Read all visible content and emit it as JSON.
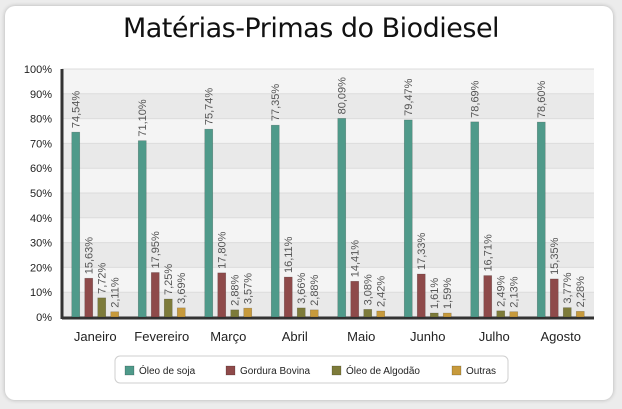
{
  "chart_data": {
    "type": "bar",
    "title": "Matérias-Primas do Biodiesel",
    "categories": [
      "Janeiro",
      "Fevereiro",
      "Março",
      "Abril",
      "Maio",
      "Junho",
      "Julho",
      "Agosto"
    ],
    "series": [
      {
        "name": "Óleo de soja",
        "color": "#4f9a8a",
        "values": [
          74.54,
          71.1,
          75.74,
          77.35,
          80.09,
          79.47,
          78.69,
          78.6
        ],
        "labels": [
          "74,54%",
          "71,10%",
          "75,74%",
          "77,35%",
          "80,09%",
          "79,47%",
          "78,69%",
          "78,60%"
        ]
      },
      {
        "name": "Gordura Bovina",
        "color": "#8e4a4a",
        "values": [
          15.63,
          17.95,
          17.8,
          16.11,
          14.41,
          17.33,
          16.71,
          15.35
        ],
        "labels": [
          "15,63%",
          "17,95%",
          "17,80%",
          "16,11%",
          "14,41%",
          "17,33%",
          "16,71%",
          "15,35%"
        ]
      },
      {
        "name": "Óleo de Algodão",
        "color": "#7d7b3a",
        "values": [
          7.72,
          7.25,
          2.88,
          3.66,
          3.08,
          1.61,
          2.49,
          3.77
        ],
        "labels": [
          "7,72%",
          "7,25%",
          "2,88%",
          "3,66%",
          "3,08%",
          "1,61%",
          "2,49%",
          "3,77%"
        ]
      },
      {
        "name": "Outras",
        "color": "#c79a3c",
        "values": [
          2.11,
          3.69,
          3.57,
          2.88,
          2.42,
          1.59,
          2.13,
          2.28
        ],
        "labels": [
          "2,11%",
          "3,69%",
          "3,57%",
          "2,88%",
          "2,42%",
          "1,59%",
          "2,13%",
          "2,28%"
        ]
      }
    ],
    "yticks": [
      "0%",
      "10%",
      "20%",
      "30%",
      "40%",
      "50%",
      "60%",
      "70%",
      "80%",
      "90%",
      "100%"
    ],
    "ylim": [
      0,
      100
    ],
    "grid": true,
    "legend_position": "bottom"
  }
}
